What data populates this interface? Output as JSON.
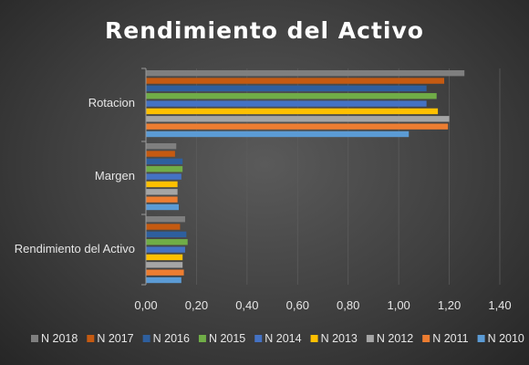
{
  "chart_data": {
    "type": "bar",
    "orientation": "horizontal",
    "title": "Rendimiento del Activo",
    "categories": [
      "Rotacion",
      "Margen",
      "Rendimiento del Activo"
    ],
    "xlim": [
      0,
      1.4
    ],
    "xticks": [
      "0,00",
      "0,20",
      "0,40",
      "0,60",
      "0,80",
      "1,00",
      "1,20",
      "1,40"
    ],
    "grid": true,
    "legend_position": "bottom",
    "series": [
      {
        "name": "N 2018",
        "color": "#7f7f7f",
        "values": [
          1.26,
          0.12,
          0.155
        ]
      },
      {
        "name": "N 2017",
        "color": "#c55a11",
        "values": [
          1.18,
          0.115,
          0.135
        ]
      },
      {
        "name": "N 2016",
        "color": "#2e5f9e",
        "values": [
          1.11,
          0.145,
          0.16
        ]
      },
      {
        "name": "N 2015",
        "color": "#70ad47",
        "values": [
          1.15,
          0.145,
          0.165
        ]
      },
      {
        "name": "N 2014",
        "color": "#4472c4",
        "values": [
          1.11,
          0.14,
          0.155
        ]
      },
      {
        "name": "N 2013",
        "color": "#ffc000",
        "values": [
          1.155,
          0.125,
          0.145
        ]
      },
      {
        "name": "N 2012",
        "color": "#a5a5a5",
        "values": [
          1.2,
          0.125,
          0.145
        ]
      },
      {
        "name": "N 2011",
        "color": "#ed7d31",
        "values": [
          1.195,
          0.125,
          0.15
        ]
      },
      {
        "name": "N 2010",
        "color": "#5b9bd5",
        "values": [
          1.04,
          0.13,
          0.14
        ]
      }
    ]
  }
}
